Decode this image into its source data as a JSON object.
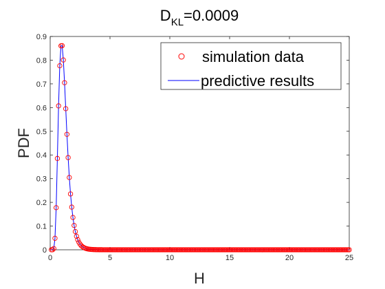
{
  "chart_data": {
    "type": "line",
    "title": {
      "main": "D",
      "sub": "KL",
      "suffix": "=0.0009"
    },
    "xlabel": "H",
    "ylabel": "PDF",
    "xlim": [
      0,
      25
    ],
    "ylim": [
      0,
      0.9
    ],
    "x_ticks": [
      "0",
      "5",
      "10",
      "15",
      "20",
      "25"
    ],
    "y_ticks": [
      "0",
      "0.1",
      "0.2",
      "0.3",
      "0.4",
      "0.5",
      "0.6",
      "0.7",
      "0.8",
      "0.9"
    ],
    "grid": false,
    "legend_position": "top-right",
    "series": [
      {
        "name": "simulation data",
        "style": "markers",
        "marker": "circle",
        "color": "#ff0000"
      },
      {
        "name": "predictive results",
        "style": "line",
        "color": "#0000ff"
      }
    ],
    "peak": {
      "x": 0.95,
      "y": 0.87
    },
    "x_step": 0.1
  }
}
